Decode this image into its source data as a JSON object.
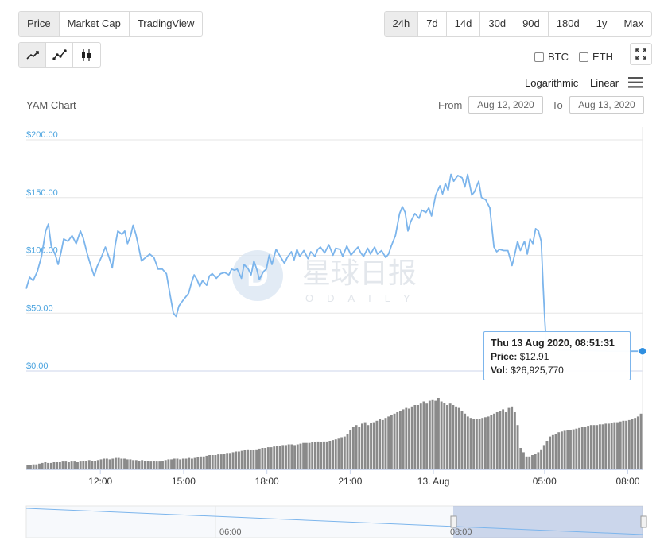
{
  "metric_tabs": [
    {
      "label": "Price",
      "active": true
    },
    {
      "label": "Market Cap",
      "active": false
    },
    {
      "label": "TradingView",
      "active": false
    }
  ],
  "range_tabs": [
    {
      "label": "24h",
      "active": true
    },
    {
      "label": "7d",
      "active": false
    },
    {
      "label": "14d",
      "active": false
    },
    {
      "label": "30d",
      "active": false
    },
    {
      "label": "90d",
      "active": false
    },
    {
      "label": "180d",
      "active": false
    },
    {
      "label": "1y",
      "active": false
    },
    {
      "label": "Max",
      "active": false
    }
  ],
  "chart_types": [
    {
      "icon": "line-chart-icon",
      "active": true
    },
    {
      "icon": "line-points-chart-icon",
      "active": false
    },
    {
      "icon": "candlestick-chart-icon",
      "active": false
    }
  ],
  "compare": {
    "btc_label": "BTC",
    "eth_label": "ETH"
  },
  "scale": {
    "log_label": "Logarithmic",
    "linear_label": "Linear"
  },
  "date_range": {
    "from_label": "From",
    "from_value": "Aug 12, 2020",
    "to_label": "To",
    "to_value": "Aug 13, 2020"
  },
  "watermark": {
    "text_cn": "星球日报",
    "text_en": "ODAILY"
  },
  "colors": {
    "line": "#7cb5ec",
    "volume": "#8a8a8a",
    "axis_label": "#4aa3df",
    "grid": "#e6e6e6"
  },
  "tooltip": {
    "date": "Thu 13 Aug 2020, 08:51:31",
    "price_label": "Price:",
    "price_value": "$12.91",
    "vol_label": "Vol:",
    "vol_value": "$26,925,770"
  },
  "chart_data": {
    "type": "line",
    "title": "YAM Chart",
    "y_ticks": [
      "$0.00",
      "$50.00",
      "$100.00",
      "$150.00",
      "$200.00"
    ],
    "ylim": [
      0,
      200
    ],
    "x_ticks": [
      {
        "label": "12:00",
        "t": 2.67
      },
      {
        "label": "15:00",
        "t": 5.67
      },
      {
        "label": "18:00",
        "t": 8.67
      },
      {
        "label": "21:00",
        "t": 11.67
      },
      {
        "label": "13. Aug",
        "t": 14.67
      },
      {
        "label": "05:00",
        "t": 18.67
      },
      {
        "label": "08:00",
        "t": 21.67
      }
    ],
    "xlim_hours": [
      0,
      22.2
    ],
    "price_series": [
      [
        0.0,
        67
      ],
      [
        0.12,
        77
      ],
      [
        0.25,
        74
      ],
      [
        0.4,
        82
      ],
      [
        0.55,
        95
      ],
      [
        0.7,
        117
      ],
      [
        0.8,
        123
      ],
      [
        0.9,
        104
      ],
      [
        1.05,
        96
      ],
      [
        1.15,
        88
      ],
      [
        1.25,
        98
      ],
      [
        1.35,
        110
      ],
      [
        1.5,
        108
      ],
      [
        1.65,
        113
      ],
      [
        1.8,
        106
      ],
      [
        1.95,
        117
      ],
      [
        2.05,
        111
      ],
      [
        2.2,
        97
      ],
      [
        2.35,
        85
      ],
      [
        2.45,
        78
      ],
      [
        2.55,
        86
      ],
      [
        2.7,
        94
      ],
      [
        2.85,
        103
      ],
      [
        3.0,
        93
      ],
      [
        3.1,
        85
      ],
      [
        3.2,
        104
      ],
      [
        3.3,
        117
      ],
      [
        3.45,
        114
      ],
      [
        3.55,
        117
      ],
      [
        3.65,
        106
      ],
      [
        3.75,
        112
      ],
      [
        3.85,
        122
      ],
      [
        3.95,
        114
      ],
      [
        4.05,
        103
      ],
      [
        4.15,
        91
      ],
      [
        4.3,
        94
      ],
      [
        4.45,
        97
      ],
      [
        4.6,
        94
      ],
      [
        4.75,
        84
      ],
      [
        4.9,
        84
      ],
      [
        5.05,
        80
      ],
      [
        5.15,
        66
      ],
      [
        5.3,
        46
      ],
      [
        5.4,
        43
      ],
      [
        5.5,
        52
      ],
      [
        5.65,
        57
      ],
      [
        5.75,
        60
      ],
      [
        5.85,
        63
      ],
      [
        5.95,
        72
      ],
      [
        6.05,
        79
      ],
      [
        6.15,
        75
      ],
      [
        6.25,
        69
      ],
      [
        6.35,
        74
      ],
      [
        6.5,
        70
      ],
      [
        6.6,
        78
      ],
      [
        6.7,
        80
      ],
      [
        6.85,
        76
      ],
      [
        7.0,
        80
      ],
      [
        7.15,
        81
      ],
      [
        7.3,
        79
      ],
      [
        7.4,
        84
      ],
      [
        7.5,
        83
      ],
      [
        7.6,
        84
      ],
      [
        7.75,
        76
      ],
      [
        7.85,
        88
      ],
      [
        8.0,
        84
      ],
      [
        8.1,
        79
      ],
      [
        8.2,
        91
      ],
      [
        8.3,
        84
      ],
      [
        8.4,
        75
      ],
      [
        8.55,
        82
      ],
      [
        8.65,
        84
      ],
      [
        8.75,
        96
      ],
      [
        8.85,
        88
      ],
      [
        9.0,
        101
      ],
      [
        9.15,
        95
      ],
      [
        9.3,
        89
      ],
      [
        9.4,
        94
      ],
      [
        9.55,
        99
      ],
      [
        9.65,
        92
      ],
      [
        9.75,
        101
      ],
      [
        9.85,
        95
      ],
      [
        10.0,
        100
      ],
      [
        10.15,
        93
      ],
      [
        10.25,
        99
      ],
      [
        10.4,
        95
      ],
      [
        10.5,
        101
      ],
      [
        10.6,
        103
      ],
      [
        10.75,
        98
      ],
      [
        10.9,
        105
      ],
      [
        11.05,
        96
      ],
      [
        11.15,
        102
      ],
      [
        11.3,
        101
      ],
      [
        11.4,
        95
      ],
      [
        11.55,
        104
      ],
      [
        11.7,
        96
      ],
      [
        11.8,
        99
      ],
      [
        11.95,
        103
      ],
      [
        12.05,
        98
      ],
      [
        12.15,
        95
      ],
      [
        12.3,
        102
      ],
      [
        12.4,
        97
      ],
      [
        12.55,
        103
      ],
      [
        12.65,
        97
      ],
      [
        12.8,
        100
      ],
      [
        12.95,
        94
      ],
      [
        13.05,
        97
      ],
      [
        13.15,
        104
      ],
      [
        13.3,
        113
      ],
      [
        13.45,
        132
      ],
      [
        13.55,
        138
      ],
      [
        13.65,
        133
      ],
      [
        13.75,
        117
      ],
      [
        13.85,
        125
      ],
      [
        14.0,
        132
      ],
      [
        14.15,
        128
      ],
      [
        14.25,
        135
      ],
      [
        14.4,
        133
      ],
      [
        14.5,
        137
      ],
      [
        14.6,
        130
      ],
      [
        14.75,
        148
      ],
      [
        14.9,
        156
      ],
      [
        15.0,
        149
      ],
      [
        15.1,
        158
      ],
      [
        15.2,
        152
      ],
      [
        15.3,
        166
      ],
      [
        15.4,
        160
      ],
      [
        15.55,
        165
      ],
      [
        15.7,
        163
      ],
      [
        15.8,
        155
      ],
      [
        15.9,
        166
      ],
      [
        16.05,
        148
      ],
      [
        16.15,
        151
      ],
      [
        16.3,
        160
      ],
      [
        16.4,
        146
      ],
      [
        16.55,
        144
      ],
      [
        16.7,
        137
      ],
      [
        16.85,
        103
      ],
      [
        16.95,
        99
      ],
      [
        17.05,
        101
      ],
      [
        17.2,
        100
      ],
      [
        17.35,
        100
      ],
      [
        17.5,
        87
      ],
      [
        17.6,
        97
      ],
      [
        17.7,
        108
      ],
      [
        17.8,
        100
      ],
      [
        17.95,
        108
      ],
      [
        18.05,
        97
      ],
      [
        18.15,
        110
      ],
      [
        18.25,
        106
      ],
      [
        18.35,
        119
      ],
      [
        18.45,
        117
      ],
      [
        18.55,
        108
      ],
      [
        18.62,
        70
      ],
      [
        18.68,
        40
      ],
      [
        18.73,
        20
      ],
      [
        18.8,
        16
      ],
      [
        18.9,
        15
      ],
      [
        19.0,
        15
      ],
      [
        19.2,
        14
      ],
      [
        19.4,
        14
      ],
      [
        19.6,
        14
      ],
      [
        19.8,
        14
      ],
      [
        20.0,
        14
      ],
      [
        20.2,
        13.5
      ],
      [
        20.4,
        13.5
      ],
      [
        20.6,
        13.2
      ],
      [
        20.8,
        13.1
      ],
      [
        21.0,
        13
      ],
      [
        21.2,
        13
      ],
      [
        21.4,
        13
      ],
      [
        21.6,
        12.95
      ],
      [
        21.9,
        12.92
      ],
      [
        22.2,
        12.91
      ]
    ],
    "volume_note": "relative volume per bar, 0-1",
    "volume_series": [
      0.06,
      0.06,
      0.07,
      0.07,
      0.08,
      0.09,
      0.1,
      0.09,
      0.09,
      0.1,
      0.1,
      0.1,
      0.11,
      0.11,
      0.1,
      0.11,
      0.11,
      0.1,
      0.11,
      0.12,
      0.12,
      0.13,
      0.12,
      0.12,
      0.13,
      0.14,
      0.15,
      0.15,
      0.14,
      0.15,
      0.16,
      0.16,
      0.15,
      0.15,
      0.14,
      0.14,
      0.13,
      0.13,
      0.12,
      0.13,
      0.12,
      0.12,
      0.11,
      0.12,
      0.11,
      0.11,
      0.12,
      0.13,
      0.14,
      0.14,
      0.15,
      0.15,
      0.14,
      0.15,
      0.15,
      0.16,
      0.15,
      0.16,
      0.17,
      0.18,
      0.18,
      0.19,
      0.2,
      0.2,
      0.2,
      0.21,
      0.21,
      0.22,
      0.23,
      0.23,
      0.24,
      0.25,
      0.25,
      0.26,
      0.27,
      0.28,
      0.27,
      0.27,
      0.28,
      0.29,
      0.3,
      0.3,
      0.31,
      0.31,
      0.32,
      0.33,
      0.33,
      0.34,
      0.34,
      0.35,
      0.35,
      0.34,
      0.35,
      0.36,
      0.37,
      0.37,
      0.37,
      0.38,
      0.38,
      0.39,
      0.38,
      0.39,
      0.39,
      0.4,
      0.41,
      0.42,
      0.43,
      0.45,
      0.46,
      0.5,
      0.55,
      0.6,
      0.62,
      0.6,
      0.64,
      0.66,
      0.62,
      0.65,
      0.66,
      0.68,
      0.7,
      0.69,
      0.72,
      0.74,
      0.76,
      0.78,
      0.8,
      0.82,
      0.84,
      0.86,
      0.85,
      0.88,
      0.9,
      0.9,
      0.92,
      0.95,
      0.92,
      0.96,
      0.98,
      0.96,
      1.0,
      0.95,
      0.93,
      0.9,
      0.92,
      0.9,
      0.88,
      0.86,
      0.82,
      0.78,
      0.74,
      0.72,
      0.7,
      0.7,
      0.71,
      0.72,
      0.73,
      0.74,
      0.76,
      0.78,
      0.8,
      0.82,
      0.84,
      0.8,
      0.86,
      0.88,
      0.8,
      0.62,
      0.3,
      0.24,
      0.18,
      0.18,
      0.2,
      0.22,
      0.24,
      0.28,
      0.34,
      0.4,
      0.46,
      0.48,
      0.5,
      0.52,
      0.53,
      0.54,
      0.55,
      0.55,
      0.56,
      0.57,
      0.58,
      0.6,
      0.6,
      0.61,
      0.62,
      0.62,
      0.62,
      0.63,
      0.63,
      0.64,
      0.64,
      0.65,
      0.66,
      0.66,
      0.67,
      0.68,
      0.68,
      0.69,
      0.7,
      0.72,
      0.74,
      0.78
    ],
    "navigator": {
      "x_ticks": [
        {
          "label": "06:00"
        },
        {
          "label": "08:00"
        }
      ]
    }
  }
}
